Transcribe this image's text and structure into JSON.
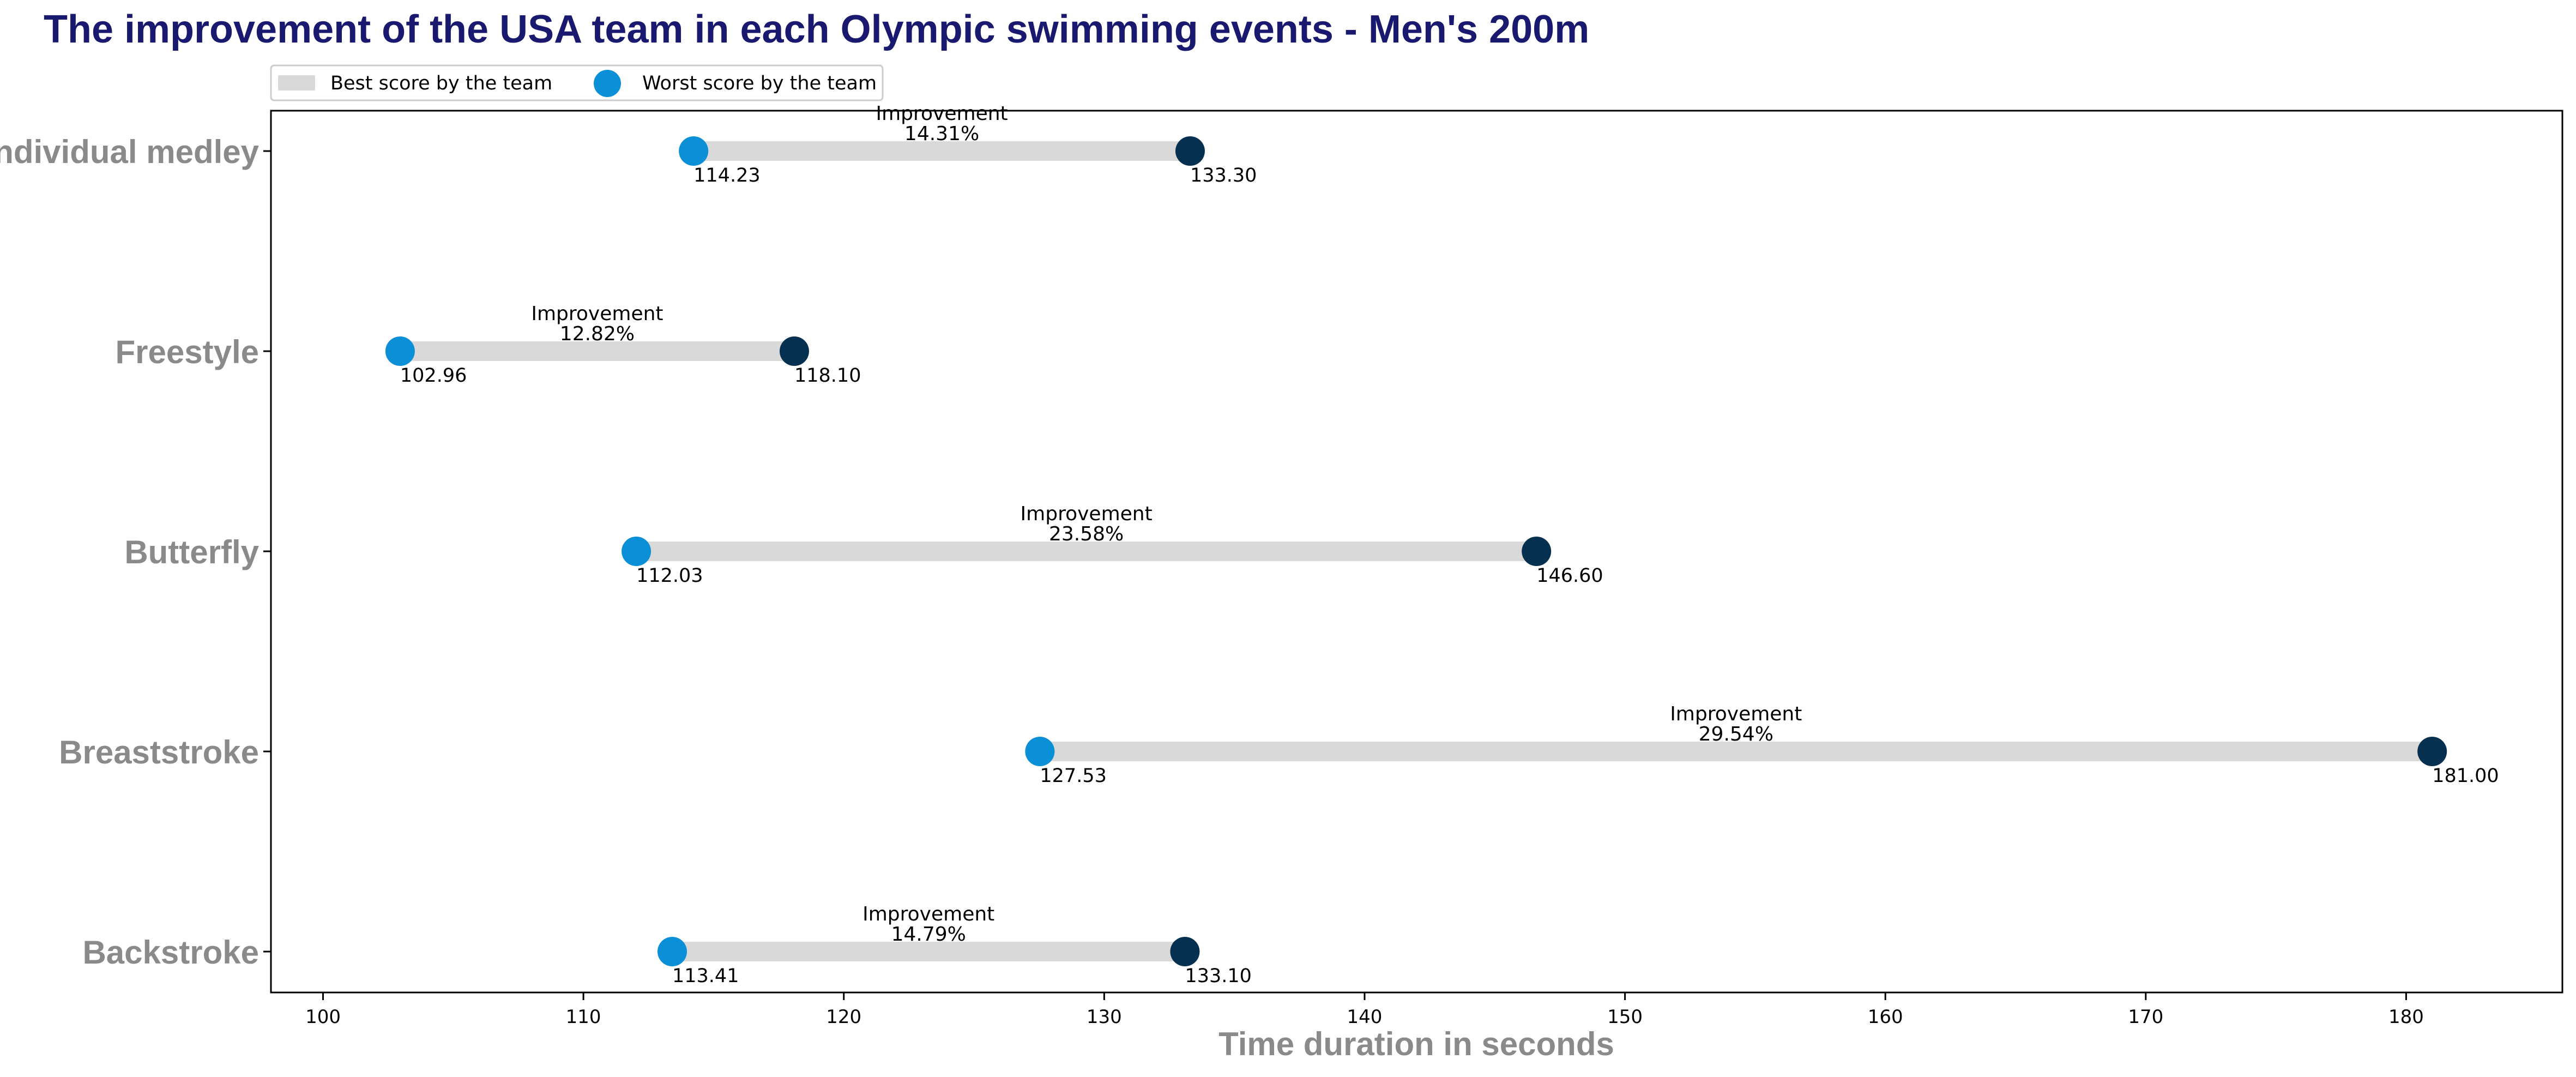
{
  "chart_data": {
    "type": "dumbbell",
    "title": "The improvement of the USA team in each Olympic swimming events - Men's 200m",
    "xlabel": "Time duration in seconds",
    "xlim": [
      98,
      186
    ],
    "x_ticks": [
      "100",
      "110",
      "120",
      "130",
      "140",
      "150",
      "160",
      "170",
      "180"
    ],
    "categories": [
      "Individual medley",
      "Freestyle",
      "Butterfly",
      "Breaststroke",
      "Backstroke"
    ],
    "series": [
      {
        "name": "Best score by the team",
        "values": [
          114.23,
          102.96,
          112.03,
          127.53,
          113.41
        ],
        "labels": [
          "114.23",
          "102.96",
          "112.03",
          "127.53",
          "113.41"
        ],
        "color": "#0b8fd6"
      },
      {
        "name": "Worst score by the team",
        "values": [
          133.3,
          118.1,
          146.6,
          181.0,
          133.1
        ],
        "labels": [
          "133.30",
          "118.10",
          "146.60",
          "181.00",
          "133.10"
        ],
        "color": "#06304f"
      }
    ],
    "annotation_heading": "Improvement",
    "improvements": [
      "14.31%",
      "12.82%",
      "23.58%",
      "29.54%",
      "14.79%"
    ],
    "bar_color": "#d9d9d9",
    "legend": {
      "placement": "top-left",
      "items": [
        "Best score by the team",
        "Worst score by the team"
      ]
    },
    "grid": false
  }
}
